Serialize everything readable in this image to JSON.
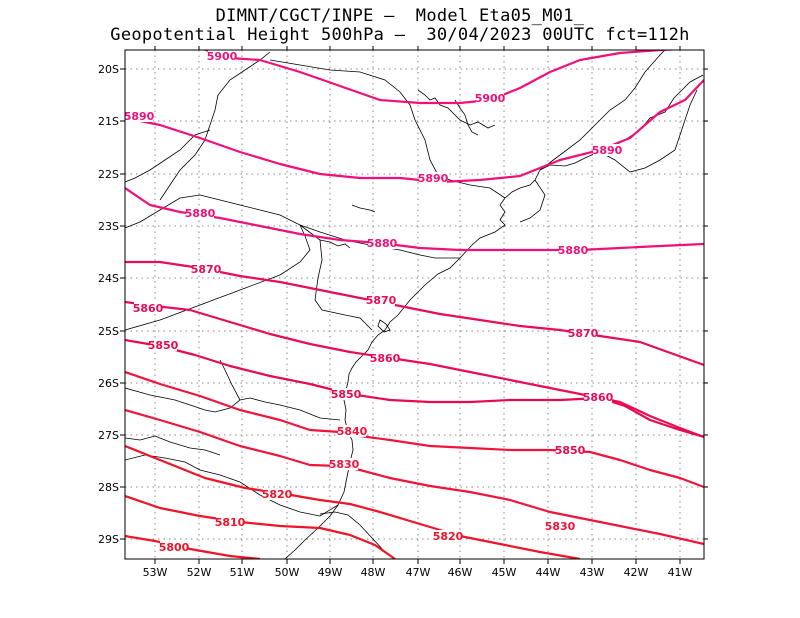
{
  "header": {
    "line1": "DIMNT/CGCT/INPE –  Model Eta05_M01_",
    "line2": "Geopotential Height 500hPa –  30/04/2023 00UTC fct=112h"
  },
  "map": {
    "lon_labels": [
      "53W",
      "52W",
      "51W",
      "50W",
      "49W",
      "48W",
      "47W",
      "46W",
      "45W",
      "44W",
      "43W",
      "42W",
      "41W"
    ],
    "lat_labels": [
      "20S",
      "21S",
      "22S",
      "23S",
      "24S",
      "25S",
      "26S",
      "27S",
      "28S",
      "29S"
    ]
  },
  "contours": [
    {
      "value": "5900",
      "color": "#f0107a",
      "labels": [
        "5900",
        "5900"
      ]
    },
    {
      "value": "5890",
      "color": "#f0107a",
      "labels": [
        "5890",
        "5890",
        "5890"
      ]
    },
    {
      "value": "5880",
      "color": "#f0107a",
      "labels": [
        "5880",
        "5880",
        "5880"
      ]
    },
    {
      "value": "5870",
      "color": "#e80c5a",
      "labels": [
        "5870",
        "5870",
        "5870"
      ]
    },
    {
      "value": "5860",
      "color": "#e80c5a",
      "labels": [
        "5860",
        "5860",
        "5860"
      ]
    },
    {
      "value": "5850",
      "color": "#e80a4a",
      "labels": [
        "5850",
        "5850",
        "5850"
      ]
    },
    {
      "value": "5840",
      "color": "#f0143c",
      "labels": [
        "5840"
      ]
    },
    {
      "value": "5830",
      "color": "#f0143c",
      "labels": [
        "5830",
        "5830"
      ]
    },
    {
      "value": "5820",
      "color": "#f01428",
      "labels": [
        "5820",
        "5820"
      ]
    },
    {
      "value": "5810",
      "color": "#f01428",
      "labels": [
        "5810"
      ]
    },
    {
      "value": "5800",
      "color": "#f01428",
      "labels": [
        "5800"
      ]
    }
  ]
}
